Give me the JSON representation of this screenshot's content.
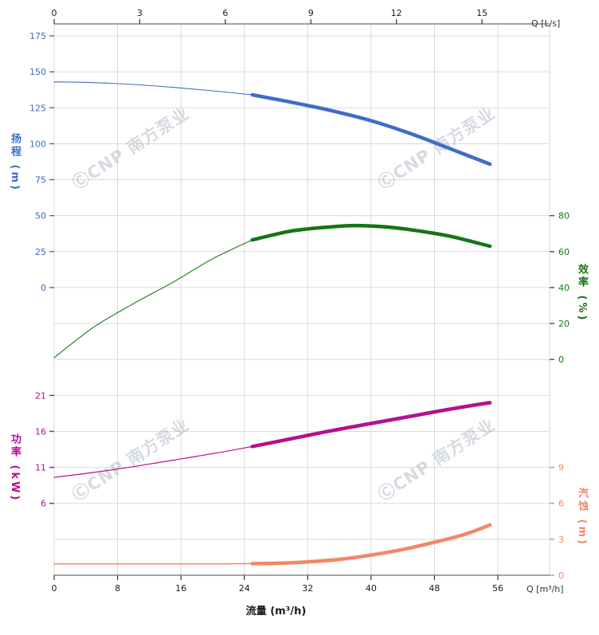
{
  "chart_data": {
    "type": "line",
    "title": "",
    "xlabel": "流量 (m³/h)",
    "watermark_text": "ⒸCNP 南方泵业",
    "duty_range_start_m3h": 25,
    "grid": true,
    "x_axis": {
      "bottom_unit": "Q [m³/h]",
      "top_unit": "Q [L/s]",
      "bottom_ticks": [
        0,
        8,
        16,
        24,
        32,
        40,
        48,
        56
      ],
      "top_ticks": [
        0,
        3,
        6,
        9,
        12,
        15
      ],
      "bottom_range": [
        0,
        62.5
      ],
      "bottom_tick_color": "#1a1a1a",
      "top_tick_color": "#1a1a1a"
    },
    "y_axes": {
      "head": {
        "title": "扬程 (m)",
        "color": "#3e6cc8",
        "side": "left",
        "ticks": [
          175,
          150,
          125,
          100,
          75,
          50,
          25,
          0
        ],
        "range": [
          0,
          175
        ]
      },
      "efficiency": {
        "title": "效率 (%)",
        "color": "#157515",
        "side": "right",
        "ticks": [
          80,
          60,
          40,
          20,
          0
        ],
        "range": [
          0,
          80
        ]
      },
      "power": {
        "title": "功率 (kW)",
        "color": "#b5108c",
        "side": "left",
        "ticks": [
          21,
          16,
          11,
          6
        ],
        "range": [
          6,
          21
        ]
      },
      "npsh": {
        "title": "汽蚀 (m)",
        "color": "#f2876a",
        "side": "right",
        "ticks": [
          9,
          6,
          3,
          0
        ],
        "range": [
          0,
          9
        ]
      }
    },
    "series": [
      {
        "name": "head",
        "axis": "head",
        "color": "#3e6cc8",
        "bold_from": 25,
        "thin_width": 1.1,
        "points": [
          [
            0,
            143
          ],
          [
            5,
            142.5
          ],
          [
            10,
            141.2
          ],
          [
            15,
            139.2
          ],
          [
            20,
            136.8
          ],
          [
            25,
            134
          ],
          [
            30,
            128.8
          ],
          [
            35,
            123
          ],
          [
            40,
            116
          ],
          [
            45,
            107
          ],
          [
            50,
            96.5
          ],
          [
            55,
            85.8
          ]
        ]
      },
      {
        "name": "efficiency",
        "axis": "efficiency",
        "color": "#157515",
        "bold_from": 25,
        "thin_width": 1.1,
        "points": [
          [
            0,
            1
          ],
          [
            5,
            18
          ],
          [
            10,
            31
          ],
          [
            15,
            43
          ],
          [
            20,
            56
          ],
          [
            25,
            66.5
          ],
          [
            30,
            71.5
          ],
          [
            35,
            73.8
          ],
          [
            38,
            74.5
          ],
          [
            42,
            73.7
          ],
          [
            46,
            71.5
          ],
          [
            50,
            68.5
          ],
          [
            55,
            63
          ]
        ]
      },
      {
        "name": "power",
        "axis": "power",
        "color": "#b5108c",
        "bold_from": 25,
        "thin_width": 1.2,
        "points": [
          [
            0,
            9.6
          ],
          [
            5,
            10.3
          ],
          [
            10,
            11.1
          ],
          [
            15,
            12
          ],
          [
            20,
            12.9
          ],
          [
            25,
            13.9
          ],
          [
            30,
            15
          ],
          [
            35,
            16.1
          ],
          [
            40,
            17.1
          ],
          [
            45,
            18.1
          ],
          [
            50,
            19.1
          ],
          [
            55,
            20
          ]
        ]
      },
      {
        "name": "npsh",
        "axis": "npsh",
        "color": "#f2876a",
        "bold_from": 25,
        "thin_width": 1.5,
        "points": [
          [
            0,
            0.95
          ],
          [
            5,
            0.95
          ],
          [
            10,
            0.95
          ],
          [
            15,
            0.95
          ],
          [
            20,
            0.95
          ],
          [
            25,
            0.97
          ],
          [
            28,
            1.0
          ],
          [
            32,
            1.12
          ],
          [
            36,
            1.32
          ],
          [
            40,
            1.68
          ],
          [
            44,
            2.15
          ],
          [
            48,
            2.75
          ],
          [
            52,
            3.45
          ],
          [
            55,
            4.2
          ]
        ]
      }
    ]
  }
}
